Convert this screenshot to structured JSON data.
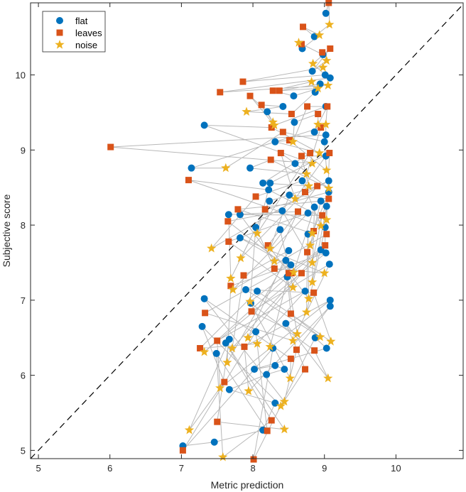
{
  "chart_data": {
    "type": "scatter",
    "title": "",
    "xlabel": "Metric prediction",
    "ylabel": "Subjective score",
    "xlim": [
      4.89,
      10.94
    ],
    "ylim": [
      4.89,
      10.96
    ],
    "xticks": [
      5,
      6,
      7,
      8,
      9,
      10
    ],
    "yticks": [
      5,
      6,
      7,
      8,
      9,
      10
    ],
    "xtick_labels": [
      "5",
      "6",
      "7",
      "8",
      "9",
      "10"
    ],
    "ytick_labels": [
      "5",
      "6",
      "7",
      "8",
      "9",
      "10"
    ],
    "grid": false,
    "legend_position": "top-left",
    "reference_line": {
      "style": "dashed",
      "slope": 1,
      "intercept": 0,
      "color": "#000000"
    },
    "connector_color": "#b8b8b8",
    "series": [
      {
        "name": "flat",
        "marker": "circle",
        "color": "#0072BD",
        "x": [
          9.02,
          8.86,
          8.69,
          8.98,
          8.83,
          9.01,
          9.08,
          8.94,
          8.57,
          8.87,
          8.42,
          8.2,
          9.02,
          8.58,
          8.86,
          9.02,
          7.32,
          8.31,
          9.0,
          7.14,
          7.96,
          8.59,
          9.02,
          8.14,
          8.24,
          8.22,
          8.69,
          9.06,
          8.23,
          8.51,
          8.95,
          9.06,
          7.66,
          7.82,
          8.41,
          8.86,
          9.03,
          8.77,
          8.38,
          8.77,
          9.01,
          8.04,
          7.82,
          8.5,
          8.95,
          9.02,
          8.46,
          8.53,
          9.07,
          8.48,
          7.9,
          8.06,
          8.73,
          9.08,
          9.08,
          7.32,
          7.97,
          8.46,
          7.29,
          7.67,
          7.62,
          7.49,
          8.04,
          8.28,
          8.87,
          9.03,
          8.02,
          8.31,
          8.44,
          8.19,
          7.67,
          8.31,
          8.14,
          7.46,
          7.02
        ],
        "y": [
          10.82,
          10.51,
          10.35,
          10.27,
          10.05,
          10.0,
          9.96,
          9.88,
          9.72,
          9.77,
          9.58,
          9.51,
          9.58,
          9.37,
          9.24,
          9.2,
          9.33,
          9.11,
          9.11,
          8.76,
          8.76,
          8.82,
          8.92,
          8.56,
          8.56,
          8.47,
          8.59,
          8.59,
          8.32,
          8.4,
          8.32,
          8.44,
          8.14,
          8.14,
          8.19,
          8.24,
          8.25,
          8.16,
          7.94,
          7.88,
          7.97,
          7.97,
          7.83,
          7.66,
          7.67,
          7.63,
          7.53,
          7.47,
          7.48,
          7.31,
          7.14,
          7.12,
          7.12,
          7.0,
          6.92,
          7.02,
          6.96,
          6.69,
          6.65,
          6.48,
          6.43,
          6.29,
          6.58,
          6.36,
          6.5,
          6.36,
          6.08,
          6.13,
          6.08,
          6.01,
          5.81,
          5.63,
          5.27,
          5.11,
          5.06
        ]
      },
      {
        "name": "leaves",
        "marker": "square",
        "color": "#D95319",
        "x": [
          9.06,
          8.7,
          8.68,
          8.97,
          9.08,
          7.86,
          7.54,
          8.37,
          8.28,
          8.54,
          8.12,
          7.96,
          8.76,
          8.91,
          9.04,
          6.01,
          8.26,
          8.51,
          8.42,
          8.95,
          8.25,
          8.39,
          8.68,
          8.8,
          9.07,
          7.1,
          8.04,
          8.73,
          8.9,
          9.06,
          7.79,
          8.17,
          8.63,
          8.97,
          7.65,
          8.85,
          9.03,
          7.66,
          8.21,
          8.76,
          9.01,
          8.3,
          8.68,
          7.87,
          8.54,
          7.69,
          8.5,
          7.33,
          7.98,
          8.53,
          8.85,
          7.26,
          7.5,
          7.88,
          8.61,
          8.53,
          8.86,
          8.73,
          7.6,
          7.5,
          8.26,
          8.2,
          7.02,
          8.01
        ],
        "y": [
          10.96,
          10.64,
          10.41,
          10.3,
          10.35,
          9.91,
          9.77,
          9.79,
          9.79,
          9.48,
          9.6,
          9.72,
          9.58,
          9.48,
          9.58,
          9.04,
          9.3,
          9.13,
          9.24,
          9.3,
          8.87,
          8.96,
          8.92,
          8.96,
          8.96,
          8.6,
          8.38,
          8.44,
          8.52,
          8.35,
          8.21,
          8.21,
          8.18,
          8.13,
          8.05,
          7.92,
          7.88,
          7.78,
          7.73,
          7.64,
          7.73,
          7.42,
          7.36,
          7.33,
          7.36,
          7.19,
          7.36,
          6.83,
          6.85,
          6.82,
          7.1,
          6.36,
          6.46,
          6.38,
          6.34,
          6.22,
          6.33,
          6.08,
          5.91,
          5.38,
          5.4,
          5.26,
          5.0,
          4.88
        ]
      },
      {
        "name": "noise",
        "marker": "star",
        "color": "#EDB120",
        "x": [
          9.07,
          8.93,
          8.64,
          9.03,
          8.84,
          8.98,
          9.05,
          8.91,
          8.82,
          7.91,
          8.28,
          8.3,
          8.56,
          8.91,
          9.02,
          8.83,
          8.93,
          9.03,
          7.62,
          8.75,
          9.06,
          8.59,
          8.78,
          8.06,
          9.03,
          8.95,
          7.42,
          7.83,
          8.24,
          8.8,
          8.83,
          7.69,
          8.3,
          8.83,
          8.57,
          8.83,
          7.72,
          8.56,
          8.78,
          8.75,
          7.96,
          9.0,
          7.93,
          7.71,
          7.32,
          7.64,
          8.24,
          8.56,
          8.62,
          8.94,
          9.09,
          8.06,
          7.54,
          7.94,
          8.44,
          8.52,
          9.05,
          8.39,
          7.11,
          8.44,
          7.58
        ],
        "y": [
          10.67,
          10.53,
          10.43,
          10.19,
          10.15,
          10.1,
          9.86,
          9.82,
          9.91,
          9.51,
          9.37,
          9.33,
          9.11,
          9.34,
          9.34,
          8.82,
          8.96,
          8.73,
          8.76,
          8.68,
          8.49,
          8.35,
          8.52,
          7.89,
          8.07,
          7.99,
          7.69,
          7.56,
          7.69,
          7.73,
          7.89,
          7.29,
          7.52,
          7.5,
          7.37,
          7.24,
          7.14,
          7.17,
          7.02,
          6.84,
          6.98,
          7.36,
          6.5,
          6.36,
          6.31,
          6.17,
          6.38,
          6.46,
          6.55,
          6.51,
          6.45,
          6.42,
          5.83,
          5.79,
          5.65,
          5.96,
          5.96,
          5.59,
          5.27,
          5.28,
          4.91
        ]
      }
    ]
  }
}
